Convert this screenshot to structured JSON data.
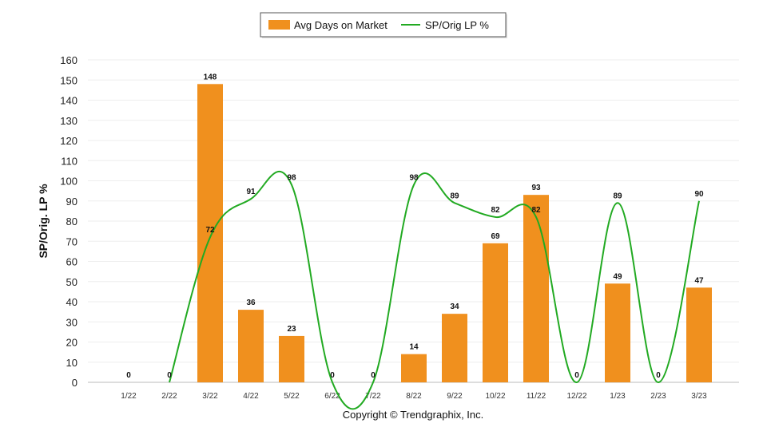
{
  "chart_data": {
    "type": "bar",
    "categories": [
      "1/22",
      "2/22",
      "3/22",
      "4/22",
      "5/22",
      "6/22",
      "7/22",
      "8/22",
      "9/22",
      "10/22",
      "11/22",
      "12/22",
      "1/23",
      "2/23",
      "3/23"
    ],
    "series": [
      {
        "name": "Avg Days on Market",
        "type": "bar",
        "color": "#f0901e",
        "values": [
          0,
          0,
          148,
          36,
          23,
          0,
          0,
          14,
          34,
          69,
          93,
          0,
          49,
          0,
          47
        ]
      },
      {
        "name": "SP/Orig LP %",
        "type": "line",
        "color": "#22aa22",
        "values": [
          0,
          0,
          72,
          91,
          98,
          0,
          0,
          98,
          89,
          82,
          82,
          0,
          89,
          0,
          90
        ]
      }
    ],
    "ylabel": "SP/Orig. LP %",
    "ylim": [
      0,
      160
    ],
    "yticks": [
      0,
      10,
      20,
      30,
      40,
      50,
      60,
      70,
      80,
      90,
      100,
      110,
      120,
      130,
      140,
      150,
      160
    ],
    "grid": true,
    "legend_position": "top-center"
  },
  "footer": {
    "copyright": "Copyright © Trendgraphix, Inc."
  }
}
